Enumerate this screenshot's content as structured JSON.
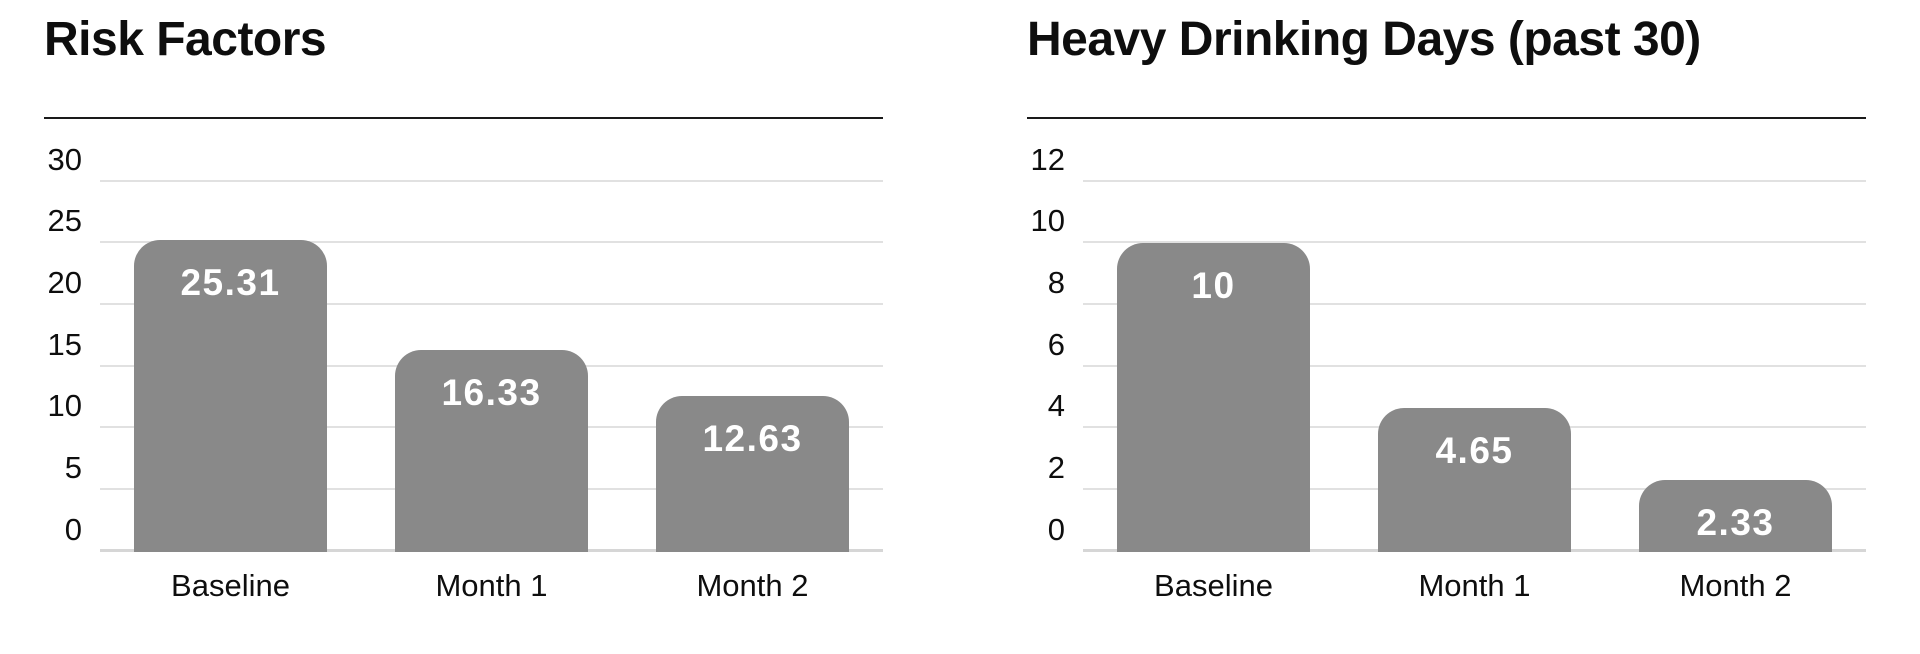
{
  "layout_colors": {
    "background": "#ffffff",
    "title_text": "#0e0e0e",
    "title_rule": "#1a1a1a",
    "gridline": "#e1e1e1",
    "zero_line": "#d6d6d6",
    "bar_fill": "#898989",
    "value_label": "#ffffff"
  },
  "chart_data": [
    {
      "type": "bar",
      "title": "Risk Factors",
      "categories": [
        "Baseline",
        "Month 1",
        "Month 2"
      ],
      "values": [
        25.31,
        16.33,
        12.63
      ],
      "data_labels": [
        "25.31",
        "16.33",
        "12.63"
      ],
      "yticks": [
        30,
        25,
        20,
        15,
        10,
        5,
        0
      ],
      "ylim": [
        0,
        30
      ],
      "xlabel": "",
      "ylabel": "",
      "grid": true,
      "legend": false,
      "bar_color": "#898989"
    },
    {
      "type": "bar",
      "title": "Heavy Drinking Days (past 30)",
      "categories": [
        "Baseline",
        "Month 1",
        "Month 2"
      ],
      "values": [
        10,
        4.65,
        2.33
      ],
      "data_labels": [
        "10",
        "4.65",
        "2.33"
      ],
      "yticks": [
        12,
        10,
        8,
        6,
        4,
        2,
        0
      ],
      "ylim": [
        0,
        12
      ],
      "xlabel": "",
      "ylabel": "",
      "grid": true,
      "legend": false,
      "bar_color": "#898989"
    }
  ]
}
